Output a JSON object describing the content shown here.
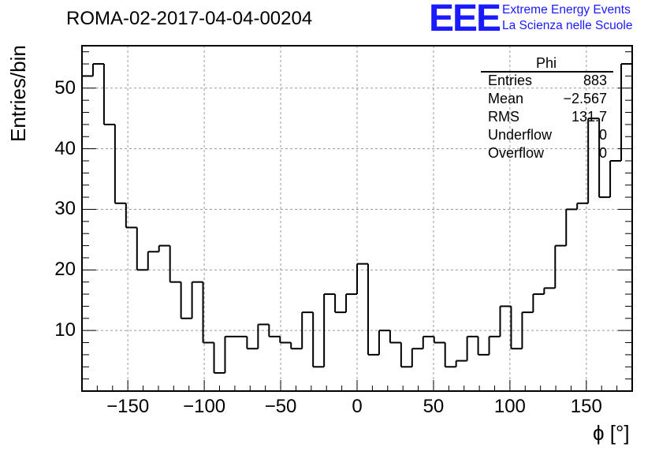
{
  "title": "ROMA-02-2017-04-04-00204",
  "logo": {
    "text": "EEE",
    "line1": "Extreme Energy Events",
    "line2": "La Scienza nelle Scuole",
    "color": "#1a1aff"
  },
  "stats": {
    "title": "Phi",
    "rows": [
      {
        "label": "Entries",
        "value": "883"
      },
      {
        "label": "Mean",
        "value": "−2.567"
      },
      {
        "label": "RMS",
        "value": "131.7"
      },
      {
        "label": "Underflow",
        "value": "0"
      },
      {
        "label": "Overflow",
        "value": "0"
      }
    ]
  },
  "chart_data": {
    "type": "histogram",
    "title": "ROMA-02-2017-04-04-00204",
    "xlabel": "ϕ [°]",
    "ylabel": "Entries/bin",
    "xlim": [
      -180,
      180
    ],
    "ylim": [
      0,
      57
    ],
    "bin_width": 7.2,
    "grid": true,
    "line_color": "#000000",
    "x_ticks": [
      {
        "value": -150,
        "label": "−150"
      },
      {
        "value": -100,
        "label": "−100"
      },
      {
        "value": -50,
        "label": "−50"
      },
      {
        "value": 0,
        "label": "0"
      },
      {
        "value": 50,
        "label": "50"
      },
      {
        "value": 100,
        "label": "100"
      },
      {
        "value": 150,
        "label": "150"
      }
    ],
    "y_ticks": [
      {
        "value": 10,
        "label": "10"
      },
      {
        "value": 20,
        "label": "20"
      },
      {
        "value": 30,
        "label": "30"
      },
      {
        "value": 40,
        "label": "40"
      },
      {
        "value": 50,
        "label": "50"
      }
    ],
    "counts": [
      52,
      54,
      44,
      31,
      27,
      20,
      23,
      24,
      18,
      12,
      18,
      8,
      3,
      9,
      9,
      7,
      11,
      9,
      8,
      7,
      13,
      4,
      16,
      13,
      16,
      21,
      6,
      10,
      8,
      4,
      7,
      9,
      8,
      4,
      5,
      9,
      6,
      9,
      14,
      7,
      13,
      16,
      17,
      24,
      30,
      31,
      45,
      32,
      38,
      54
    ]
  }
}
